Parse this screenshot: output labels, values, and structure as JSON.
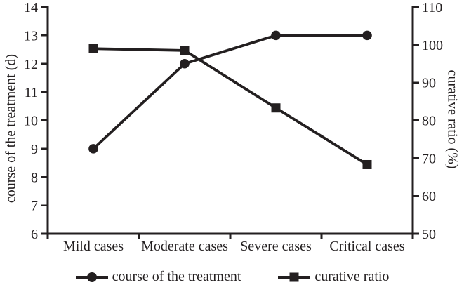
{
  "chart_data": {
    "type": "line",
    "title": "",
    "categories": [
      "Mild cases",
      "Moderate cases",
      "Severe cases",
      "Critical cases"
    ],
    "series": [
      {
        "name": "course of the treatment",
        "marker": "circle",
        "axis": "left",
        "values": [
          9,
          12,
          13,
          13
        ]
      },
      {
        "name": "curative ratio",
        "marker": "square",
        "axis": "right",
        "values": [
          99,
          98.5,
          83.3,
          68.3
        ]
      }
    ],
    "left_axis": {
      "label": "course of the treatment (d)",
      "min": 6,
      "max": 14,
      "ticks": [
        6,
        7,
        8,
        9,
        10,
        11,
        12,
        13,
        14
      ]
    },
    "right_axis": {
      "label": "curative ratio (%)",
      "min": 50,
      "max": 110,
      "ticks": [
        50,
        60,
        70,
        80,
        90,
        100,
        110
      ]
    },
    "legend": {
      "position": "bottom",
      "entries": [
        "course of the treatment",
        "curative ratio"
      ]
    },
    "line_color": "#231f20",
    "background": "#ffffff",
    "grid": false
  }
}
